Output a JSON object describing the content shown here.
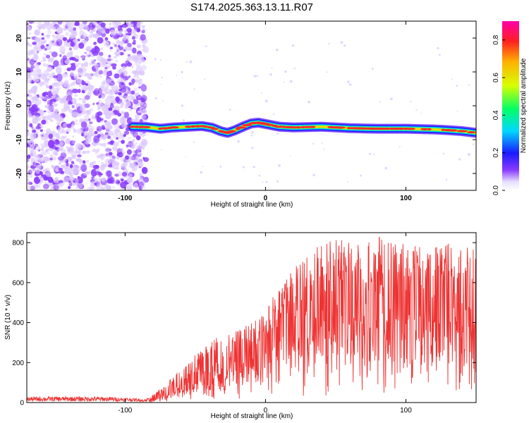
{
  "figure": {
    "title": "S174.2025.363.13.11.R07"
  },
  "chart_data": [
    {
      "type": "heatmap",
      "name": "spectrogram",
      "xlabel": "Height of straight line (km)",
      "ylabel": "Frequency (Hz)",
      "xlim": [
        -170,
        150
      ],
      "ylim": [
        -25,
        25
      ],
      "x_ticks": [
        -100,
        0,
        100
      ],
      "y_ticks": [
        20,
        10,
        0,
        -10,
        -20
      ],
      "noise_region_x": [
        -170,
        -85
      ],
      "signal_ridge": {
        "x": [
          -95,
          -85,
          -75,
          -65,
          -55,
          -45,
          -38,
          -32,
          -27,
          -22,
          -15,
          -10,
          -5,
          0,
          10,
          20,
          30,
          40,
          50,
          60,
          70,
          80,
          90,
          100,
          110,
          120,
          130,
          140,
          150
        ],
        "y": [
          -6.2,
          -6.3,
          -6.8,
          -6.4,
          -6.2,
          -6.0,
          -6.5,
          -7.5,
          -8.0,
          -7.3,
          -6.0,
          -5.2,
          -5.0,
          -5.4,
          -6.2,
          -6.4,
          -6.3,
          -6.2,
          -6.4,
          -6.6,
          -6.7,
          -6.8,
          -6.8,
          -6.8,
          -6.9,
          -7.0,
          -7.2,
          -7.5,
          -8.0
        ]
      },
      "colorbar": {
        "label": "Normalized spectral amplitude",
        "range": [
          0.0,
          0.9
        ],
        "ticks": [
          0.0,
          0.2,
          0.4,
          0.6,
          0.8
        ]
      }
    },
    {
      "type": "line",
      "name": "snr",
      "xlabel": "Height of straight line (km)",
      "ylabel": "SNR (10 * v/v)",
      "xlim": [
        -170,
        150
      ],
      "ylim": [
        0,
        850
      ],
      "x_ticks": [
        -100,
        0,
        100
      ],
      "y_ticks": [
        0,
        200,
        400,
        600,
        800
      ],
      "color": "#ee3333",
      "series": [
        {
          "name": "SNR",
          "x": [
            -170,
            -150,
            -130,
            -110,
            -95,
            -85,
            -80,
            -75,
            -70,
            -65,
            -60,
            -55,
            -50,
            -45,
            -40,
            -35,
            -30,
            -25,
            -20,
            -15,
            -10,
            -5,
            0,
            5,
            10,
            15,
            20,
            25,
            30,
            40,
            50,
            60,
            70,
            80,
            90,
            100,
            110,
            120,
            130,
            140,
            150
          ],
          "envelope_max": [
            28,
            30,
            30,
            28,
            22,
            18,
            40,
            70,
            100,
            140,
            165,
            190,
            240,
            260,
            300,
            330,
            330,
            340,
            360,
            380,
            400,
            430,
            440,
            540,
            580,
            620,
            680,
            700,
            770,
            790,
            820,
            800,
            800,
            840,
            800,
            800,
            780,
            780,
            800,
            790,
            780
          ],
          "baseline": [
            12,
            12,
            12,
            12,
            10,
            8,
            15,
            25,
            40,
            55,
            70,
            85,
            100,
            115,
            130,
            150,
            170,
            190,
            210,
            230,
            250,
            270,
            280,
            300,
            320,
            340,
            360,
            380,
            400,
            420,
            430,
            440,
            450,
            450,
            450,
            450,
            440,
            440,
            440,
            440,
            440
          ]
        }
      ]
    }
  ],
  "colors": {
    "noise_purple": "#8a3bff",
    "noise_light": "#dcc8ff",
    "ridge_red": "#ff2b2b",
    "snr_red": "#ee3333"
  }
}
